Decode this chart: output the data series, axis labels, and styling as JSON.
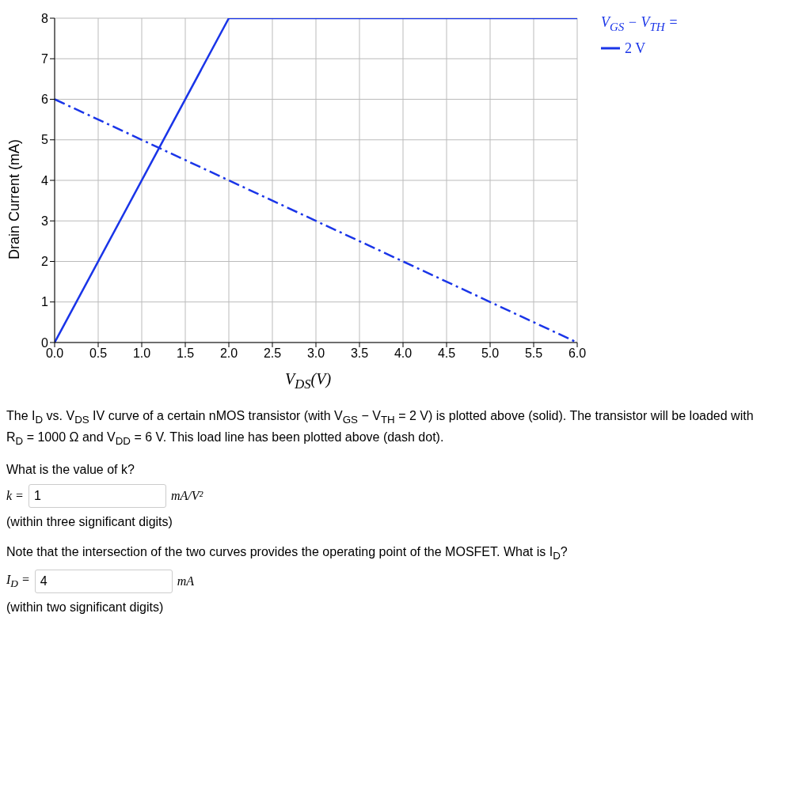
{
  "chart_data": {
    "type": "line",
    "xlabel": "V$_{DS}$(V)",
    "ylabel": "Drain Current (mA)",
    "legend_title": "V$_{GS}$ − V$_{TH}$ =",
    "xlim": [
      0,
      6
    ],
    "xticks": [
      {
        "value": 0,
        "label": "0.0"
      },
      0.5,
      {
        "value": 1,
        "label": "1.0"
      },
      1.5,
      {
        "value": 2,
        "label": "2.0"
      },
      2.5,
      {
        "value": 3,
        "label": "3.0"
      },
      3.5,
      {
        "value": 4,
        "label": "4.0"
      },
      4.5,
      {
        "value": 5,
        "label": "5.0"
      },
      5.5,
      {
        "value": 6,
        "label": "6.0"
      }
    ],
    "ylim": [
      0,
      8
    ],
    "yticks": [
      0,
      1,
      2,
      3,
      4,
      5,
      6,
      7,
      8
    ],
    "grid": true,
    "legend": "right",
    "marker": "none",
    "series": [
      {
        "name": "2 V",
        "color": "#1a35e8",
        "x": [
          0,
          2,
          6
        ],
        "values": [
          0,
          8,
          8
        ],
        "line_style": "solid"
      },
      {
        "color": "#1a35e8",
        "x": [
          0,
          6
        ],
        "values": [
          6,
          0
        ],
        "line_style": "dashed"
      }
    ],
    "annotations": [
      "The I$_{D}$ vs. V$_{DS}$ IV curve of a certain nMOS transistor (with V$_{GS}$ − V$_{TH}$ = 2 V) is plotted above (solid). The transistor will be loaded with R$_{D}$ = 1000 Ω and V$_{DD}$ = 6 V. This load line has been plotted above (dash dot).",
      "What is the value of k?",
      "k =",
      "1",
      "mA/V²",
      "(within three significant digits)",
      "Note that the intersection of the two curves provides the operating point of the MOSFET. What is I$_{D}$?",
      "I$_{D}$ =",
      "4",
      "mA",
      "(within two significant digits)"
    ]
  }
}
